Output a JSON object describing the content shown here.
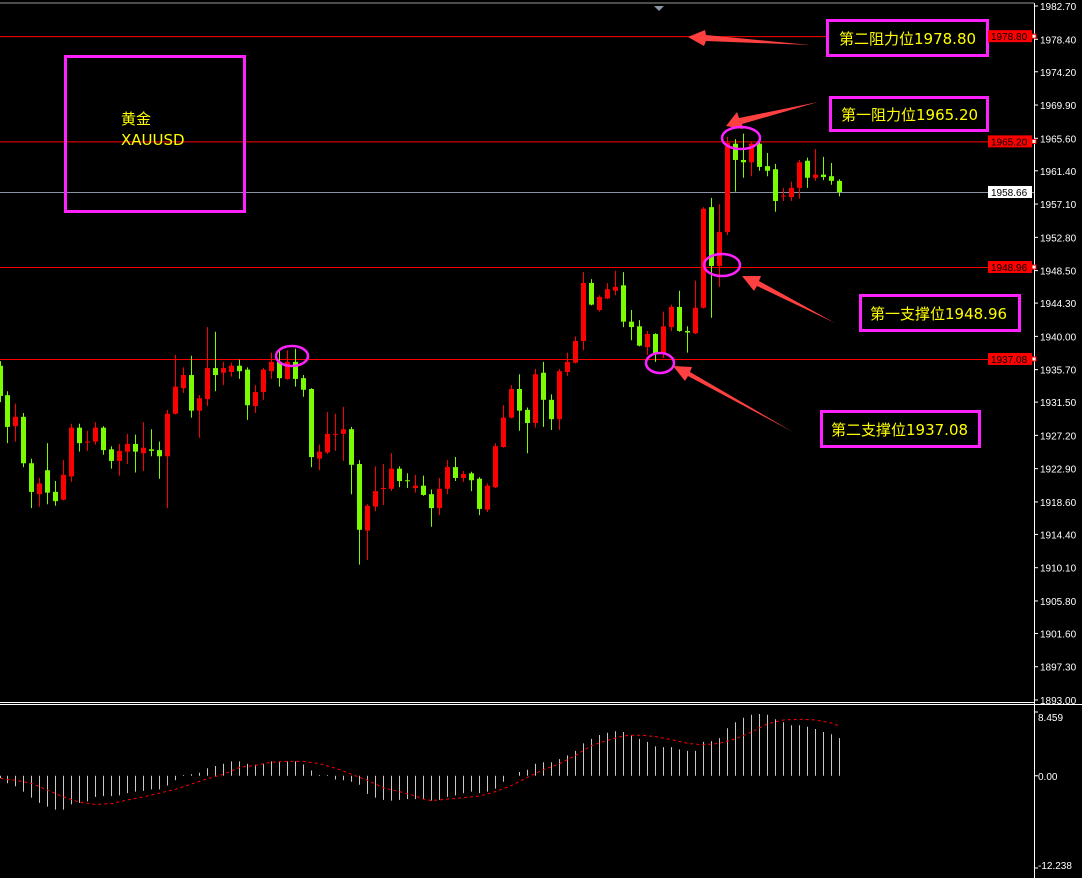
{
  "chart_data": {
    "type": "candlestick",
    "symbol_label": "黄金",
    "symbol": "XAUUSD",
    "colors": {
      "bull": "#ff0000",
      "bear": "#7cfc00",
      "background": "#000000",
      "annotation_box": "#ff22ff",
      "annotation_text": "#ffff00",
      "arrow": "#ff4040",
      "level_line": "#ff0000",
      "bid_line": "#8a94a6",
      "histogram": "#c8c8c8",
      "signal": "#ff0000"
    },
    "price_axis": {
      "ylim": [
        1893.0,
        1982.7
      ],
      "ticks": [
        "1982.70",
        "1978.40",
        "1974.20",
        "1969.90",
        "1965.60",
        "1961.40",
        "1957.10",
        "1952.80",
        "1948.50",
        "1944.30",
        "1940.00",
        "1935.70",
        "1931.50",
        "1927.20",
        "1922.90",
        "1918.60",
        "1914.40",
        "1910.10",
        "1905.80",
        "1901.60",
        "1897.30",
        "1893.00"
      ]
    },
    "levels": [
      {
        "price": 1978.8,
        "label": "1978.80",
        "annotation": "第二阻力位1978.80"
      },
      {
        "price": 1965.2,
        "label": "1965.20",
        "annotation": "第一阻力位1965.20"
      },
      {
        "price": 1948.96,
        "label": "1948.96",
        "annotation": "第一支撑位1948.96"
      },
      {
        "price": 1937.08,
        "label": "1937.08",
        "annotation": "第二支撑位1937.08"
      }
    ],
    "bid": {
      "price": 1958.66,
      "label": "1958.66"
    },
    "candles": [
      [
        1936.2,
        1936.8,
        1931.5,
        1932.3
      ],
      [
        1932.4,
        1932.9,
        1926.2,
        1928.3
      ],
      [
        1928.4,
        1931.3,
        1926.4,
        1929.6
      ],
      [
        1929.6,
        1930.1,
        1923.1,
        1923.6
      ],
      [
        1923.6,
        1924.2,
        1917.8,
        1919.9
      ],
      [
        1919.6,
        1921.7,
        1918.0,
        1921.0
      ],
      [
        1922.7,
        1926.2,
        1918.3,
        1919.8
      ],
      [
        1919.9,
        1921.3,
        1918.1,
        1918.7
      ],
      [
        1918.9,
        1924.0,
        1918.8,
        1922.1
      ],
      [
        1921.9,
        1928.7,
        1921.2,
        1928.2
      ],
      [
        1928.2,
        1928.7,
        1925.1,
        1926.2
      ],
      [
        1926.3,
        1927.8,
        1925.2,
        1926.4
      ],
      [
        1926.4,
        1928.9,
        1926.0,
        1928.2
      ],
      [
        1928.2,
        1928.4,
        1924.7,
        1925.3
      ],
      [
        1925.4,
        1925.8,
        1922.9,
        1923.9
      ],
      [
        1923.9,
        1926.1,
        1922.0,
        1925.2
      ],
      [
        1925.1,
        1927.4,
        1923.5,
        1926.1
      ],
      [
        1926.1,
        1927.3,
        1922.4,
        1925.1
      ],
      [
        1924.9,
        1928.9,
        1922.6,
        1925.6
      ],
      [
        1925.4,
        1928.0,
        1924.5,
        1925.2
      ],
      [
        1925.3,
        1926.4,
        1921.6,
        1924.5
      ],
      [
        1924.5,
        1930.5,
        1917.8,
        1930.0
      ],
      [
        1930.0,
        1937.6,
        1929.9,
        1933.5
      ],
      [
        1933.3,
        1936.0,
        1932.7,
        1935.0
      ],
      [
        1935.0,
        1937.5,
        1929.5,
        1930.4
      ],
      [
        1930.4,
        1932.4,
        1926.9,
        1932.0
      ],
      [
        1931.9,
        1941.2,
        1931.0,
        1935.9
      ],
      [
        1935.9,
        1940.6,
        1932.9,
        1935.0
      ],
      [
        1935.3,
        1936.7,
        1933.7,
        1935.9
      ],
      [
        1935.4,
        1936.6,
        1934.8,
        1936.2
      ],
      [
        1936.2,
        1937.0,
        1934.5,
        1935.5
      ],
      [
        1935.7,
        1936.0,
        1929.2,
        1931.1
      ],
      [
        1931.0,
        1933.7,
        1930.1,
        1932.8
      ],
      [
        1932.8,
        1935.9,
        1931.8,
        1935.7
      ],
      [
        1935.5,
        1937.9,
        1934.5,
        1936.7
      ],
      [
        1936.7,
        1938.3,
        1933.5,
        1934.6
      ],
      [
        1934.5,
        1938.2,
        1934.4,
        1936.7
      ],
      [
        1936.7,
        1938.4,
        1933.5,
        1934.5
      ],
      [
        1934.6,
        1935.0,
        1932.2,
        1933.1
      ],
      [
        1933.2,
        1933.3,
        1923.1,
        1924.4
      ],
      [
        1924.2,
        1926.0,
        1922.7,
        1925.1
      ],
      [
        1925.0,
        1930.2,
        1924.8,
        1927.4
      ],
      [
        1927.3,
        1930.0,
        1925.2,
        1927.4
      ],
      [
        1927.4,
        1930.9,
        1923.9,
        1928.0
      ],
      [
        1928.0,
        1928.3,
        1919.6,
        1923.4
      ],
      [
        1923.5,
        1924.0,
        1910.5,
        1915.0
      ],
      [
        1914.9,
        1918.3,
        1911.1,
        1918.1
      ],
      [
        1918.0,
        1923.2,
        1917.4,
        1920.0
      ],
      [
        1920.3,
        1923.5,
        1918.2,
        1920.4
      ],
      [
        1920.3,
        1924.9,
        1920.0,
        1922.9
      ],
      [
        1922.9,
        1923.2,
        1920.5,
        1921.3
      ],
      [
        1921.4,
        1922.3,
        1920.4,
        1921.3
      ],
      [
        1920.4,
        1922.1,
        1919.8,
        1920.7
      ],
      [
        1920.7,
        1922.0,
        1919.4,
        1919.5
      ],
      [
        1919.6,
        1920.2,
        1915.4,
        1917.8
      ],
      [
        1917.8,
        1921.7,
        1916.9,
        1920.3
      ],
      [
        1920.3,
        1924.0,
        1919.6,
        1923.1
      ],
      [
        1923.1,
        1924.4,
        1921.3,
        1921.7
      ],
      [
        1921.7,
        1922.6,
        1921.2,
        1922.2
      ],
      [
        1922.3,
        1922.5,
        1920.0,
        1921.4
      ],
      [
        1921.6,
        1921.8,
        1916.9,
        1917.7
      ],
      [
        1917.6,
        1921.0,
        1917.3,
        1920.7
      ],
      [
        1920.5,
        1926.2,
        1920.4,
        1925.8
      ],
      [
        1925.7,
        1931.1,
        1925.6,
        1929.5
      ],
      [
        1929.5,
        1933.7,
        1929.4,
        1933.2
      ],
      [
        1933.2,
        1935.1,
        1927.8,
        1930.4
      ],
      [
        1930.5,
        1930.8,
        1924.9,
        1928.8
      ],
      [
        1928.8,
        1935.8,
        1928.2,
        1935.1
      ],
      [
        1935.3,
        1936.7,
        1928.3,
        1931.8
      ],
      [
        1931.8,
        1932.5,
        1927.9,
        1929.3
      ],
      [
        1929.3,
        1935.8,
        1927.9,
        1935.5
      ],
      [
        1935.4,
        1937.9,
        1934.9,
        1936.7
      ],
      [
        1936.6,
        1940.0,
        1936.5,
        1939.4
      ],
      [
        1939.4,
        1948.3,
        1938.2,
        1946.9
      ],
      [
        1946.9,
        1947.4,
        1944.0,
        1944.1
      ],
      [
        1943.4,
        1945.3,
        1943.2,
        1945.1
      ],
      [
        1944.9,
        1946.9,
        1944.8,
        1946.1
      ],
      [
        1945.9,
        1948.5,
        1945.3,
        1946.4
      ],
      [
        1946.6,
        1948.3,
        1941.2,
        1941.9
      ],
      [
        1941.9,
        1943.4,
        1939.5,
        1941.2
      ],
      [
        1941.3,
        1942.1,
        1938.7,
        1938.8
      ],
      [
        1938.6,
        1940.7,
        1937.6,
        1940.3
      ],
      [
        1940.3,
        1940.4,
        1936.7,
        1937.7
      ],
      [
        1937.9,
        1943.2,
        1937.2,
        1941.3
      ],
      [
        1941.2,
        1944.1,
        1940.7,
        1943.8
      ],
      [
        1943.8,
        1945.9,
        1940.6,
        1940.7
      ],
      [
        1940.7,
        1941.3,
        1937.9,
        1940.5
      ],
      [
        1940.4,
        1947.2,
        1940.3,
        1943.7
      ],
      [
        1943.7,
        1956.7,
        1943.6,
        1956.5
      ],
      [
        1956.7,
        1957.9,
        1942.4,
        1949.1
      ],
      [
        1949.1,
        1957.1,
        1946.4,
        1953.5
      ],
      [
        1953.5,
        1965.8,
        1953.1,
        1965.0
      ],
      [
        1964.9,
        1965.5,
        1958.7,
        1962.8
      ],
      [
        1962.8,
        1966.2,
        1960.5,
        1962.5
      ],
      [
        1962.5,
        1965.1,
        1960.7,
        1964.9
      ],
      [
        1964.9,
        1965.1,
        1961.4,
        1961.9
      ],
      [
        1962.0,
        1963.7,
        1960.7,
        1961.4
      ],
      [
        1961.6,
        1962.3,
        1956.1,
        1957.5
      ],
      [
        1958.1,
        1959.2,
        1957.5,
        1958.2
      ],
      [
        1958.0,
        1960.0,
        1957.5,
        1959.2
      ],
      [
        1959.2,
        1962.8,
        1957.8,
        1962.5
      ],
      [
        1962.7,
        1963.1,
        1959.2,
        1960.5
      ],
      [
        1960.5,
        1964.2,
        1960.1,
        1960.9
      ],
      [
        1960.9,
        1963.2,
        1960.2,
        1960.6
      ],
      [
        1960.7,
        1962.4,
        1959.6,
        1960.1
      ],
      [
        1960.1,
        1960.3,
        1958.1,
        1958.66
      ]
    ],
    "candle_format": [
      "open",
      "high",
      "low",
      "close"
    ],
    "indicator": {
      "type": "macd",
      "ylim": [
        -12.238,
        8.459
      ],
      "ticks": [
        "8.459",
        "0.00",
        "-12.238"
      ],
      "histogram": [
        -0.3,
        -1.0,
        -1.4,
        -2.1,
        -2.9,
        -3.6,
        -4.1,
        -4.5,
        -4.5,
        -3.8,
        -3.6,
        -3.4,
        -2.8,
        -2.7,
        -2.7,
        -2.6,
        -2.3,
        -2.1,
        -2.0,
        -1.8,
        -1.8,
        -1.3,
        -0.6,
        0.1,
        0.2,
        0.4,
        1.0,
        1.3,
        1.6,
        1.9,
        1.9,
        1.6,
        1.5,
        1.6,
        1.9,
        1.9,
        1.9,
        1.9,
        1.5,
        0.7,
        0.1,
        0.1,
        -0.5,
        -0.6,
        -0.8,
        -1.2,
        -2.4,
        -2.9,
        -3.2,
        -3.3,
        -3.2,
        -3.1,
        -3.1,
        -3.1,
        -3.3,
        -3.2,
        -2.8,
        -2.6,
        -2.3,
        -2.1,
        -2.3,
        -2.1,
        -1.7,
        -0.8,
        0.0,
        0.5,
        0.8,
        1.6,
        1.8,
        1.8,
        2.2,
        2.7,
        3.3,
        4.3,
        4.9,
        5.4,
        5.7,
        5.9,
        5.8,
        5.4,
        4.9,
        4.5,
        3.9,
        3.8,
        3.8,
        3.5,
        3.3,
        3.3,
        4.5,
        4.6,
        5.0,
        6.3,
        7.1,
        7.7,
        8.1,
        8.2,
        8.1,
        7.5,
        7.1,
        6.7,
        6.7,
        6.5,
        6.2,
        5.8,
        5.5,
        5.0
      ],
      "signal": [
        -0.35,
        -0.5,
        -0.6,
        -0.8,
        -1.0,
        -1.45,
        -1.9,
        -2.35,
        -2.8,
        -3.15,
        -3.5,
        -3.65,
        -3.8,
        -3.75,
        -3.7,
        -3.45,
        -3.2,
        -3.0,
        -2.8,
        -2.55,
        -2.3,
        -2.05,
        -1.8,
        -1.45,
        -1.1,
        -0.75,
        -0.4,
        -0.1,
        0.2,
        0.65,
        1.1,
        1.25,
        1.4,
        1.6,
        1.8,
        1.85,
        1.9,
        1.9,
        1.9,
        1.75,
        1.6,
        1.3,
        1.0,
        0.6,
        0.2,
        -0.2,
        -0.6,
        -1.1,
        -1.6,
        -1.85,
        -2.1,
        -2.4,
        -2.7,
        -3.1,
        -3.3,
        -3.2,
        -3.1,
        -3.0,
        -2.9,
        -2.8,
        -2.7,
        -2.4,
        -2.1,
        -1.7,
        -1.3,
        -0.75,
        -0.2,
        0.3,
        0.8,
        1.2,
        1.6,
        2.15,
        2.7,
        3.35,
        4.0,
        4.35,
        4.7,
        5.0,
        5.3,
        5.35,
        5.4,
        5.3,
        5.2,
        5.0,
        4.8,
        4.55,
        4.3,
        4.2,
        4.1,
        4.2,
        4.3,
        4.6,
        4.9,
        5.35,
        5.8,
        6.35,
        6.9,
        7.15,
        7.4,
        7.45,
        7.5,
        7.45,
        7.4,
        7.2,
        7.0,
        6.6
      ]
    },
    "highlight_candles": [
      36,
      82,
      90,
      92
    ]
  }
}
